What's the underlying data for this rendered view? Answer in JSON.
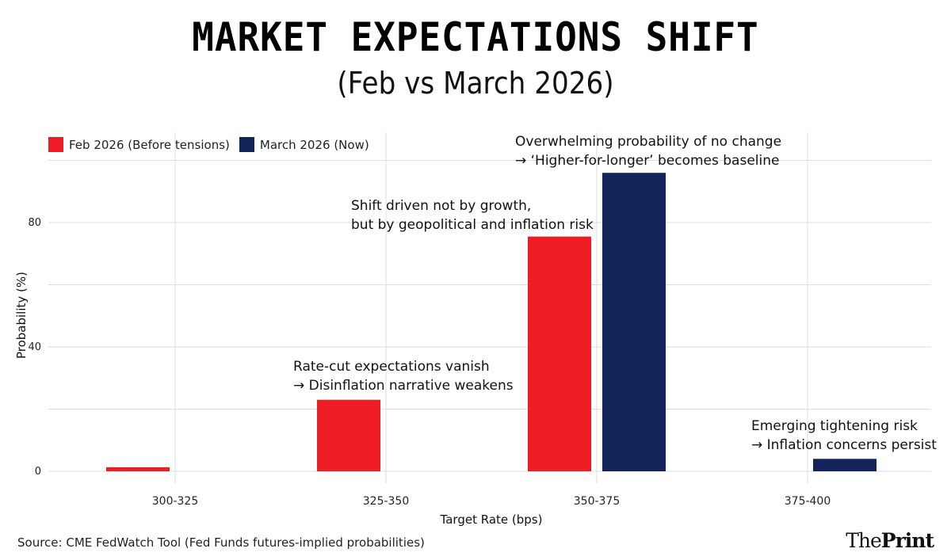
{
  "chart_data": {
    "type": "bar",
    "title": "MARKET EXPECTATIONS SHIFT",
    "subtitle": "(Feb vs March 2026)",
    "xlabel": "Target Rate (bps)",
    "ylabel": "Probability (%)",
    "categories": [
      "300-325",
      "325-350",
      "350-375",
      "375-400"
    ],
    "series": [
      {
        "name": "Feb 2026 (Before tensions)",
        "color": "#EE1C25",
        "values": [
          1.3,
          23,
          75.5,
          0
        ]
      },
      {
        "name": "March 2026 (Now)",
        "color": "#13245A",
        "values": [
          0,
          0,
          96,
          4
        ]
      }
    ],
    "ylim": [
      0,
      100
    ],
    "yticks": [
      0,
      40,
      80
    ],
    "ygrid_minor": [
      20,
      60,
      100
    ],
    "grid": true,
    "legend_position": "top-left",
    "annotations": [
      {
        "category": "325-350",
        "lines": [
          "Rate-cut expectations vanish",
          "→ Disinflation narrative weakens"
        ]
      },
      {
        "category": "350-375",
        "series": "Feb 2026 (Before tensions)",
        "lines": [
          "Shift driven not by growth,",
          "but by geopolitical and inflation risk"
        ]
      },
      {
        "category": "350-375",
        "series": "March 2026 (Now)",
        "lines": [
          "Overwhelming probability of no change",
          "→ ‘Higher-for-longer’ becomes baseline"
        ]
      },
      {
        "category": "375-400",
        "lines": [
          "Emerging tightening risk",
          "→ Inflation concerns persist"
        ]
      }
    ]
  },
  "footer": {
    "source": "Source: CME FedWatch Tool (Fed Funds futures-implied probabilities)",
    "logo_light": "The",
    "logo_bold": "Print"
  },
  "colors": {
    "grid": "#dddddd",
    "text": "#222222"
  }
}
